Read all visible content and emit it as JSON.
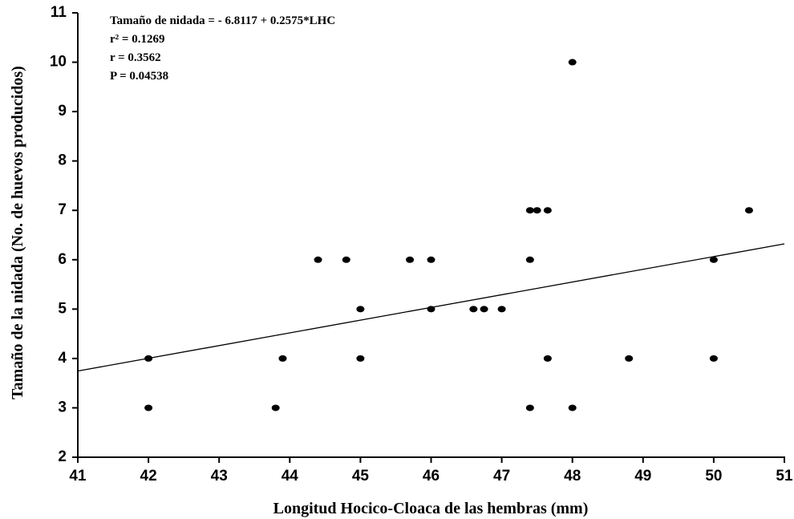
{
  "chart_data": {
    "type": "scatter",
    "x_label": "Longitud Hocico-Cloaca de las hembras (mm)",
    "y_label": "Tamaño de la nidada (No. de huevos producidos)",
    "annotations": [
      "Tamaño de nidada = - 6.8117 + 0.2575*LHC",
      "r² = 0.1269",
      "r = 0.3562",
      "P = 0.04538"
    ],
    "x": [
      42,
      42,
      43.8,
      43.9,
      44.4,
      44.8,
      45,
      45,
      45.7,
      46,
      46,
      46.6,
      46.75,
      47,
      47.4,
      47.5,
      47.65,
      47.4,
      47.65,
      47.4,
      48,
      48,
      48.8,
      50,
      50,
      50.5
    ],
    "values": [
      4,
      3,
      3,
      4,
      6,
      6,
      5,
      4,
      6,
      6,
      5,
      5,
      5,
      5,
      7,
      7,
      7,
      6,
      4,
      3,
      10,
      3,
      4,
      6,
      4,
      7
    ],
    "color": "#000000",
    "fit_line": {
      "x": [
        41,
        51
      ],
      "values": [
        3.746,
        6.321
      ]
    },
    "xlim": [
      41,
      51
    ],
    "xticks": [
      41,
      42,
      43,
      44,
      45,
      46,
      47,
      48,
      49,
      50,
      51
    ],
    "ylim": [
      2,
      11
    ],
    "yticks": [
      2,
      3,
      4,
      5,
      6,
      7,
      8,
      9,
      10,
      11
    ]
  }
}
